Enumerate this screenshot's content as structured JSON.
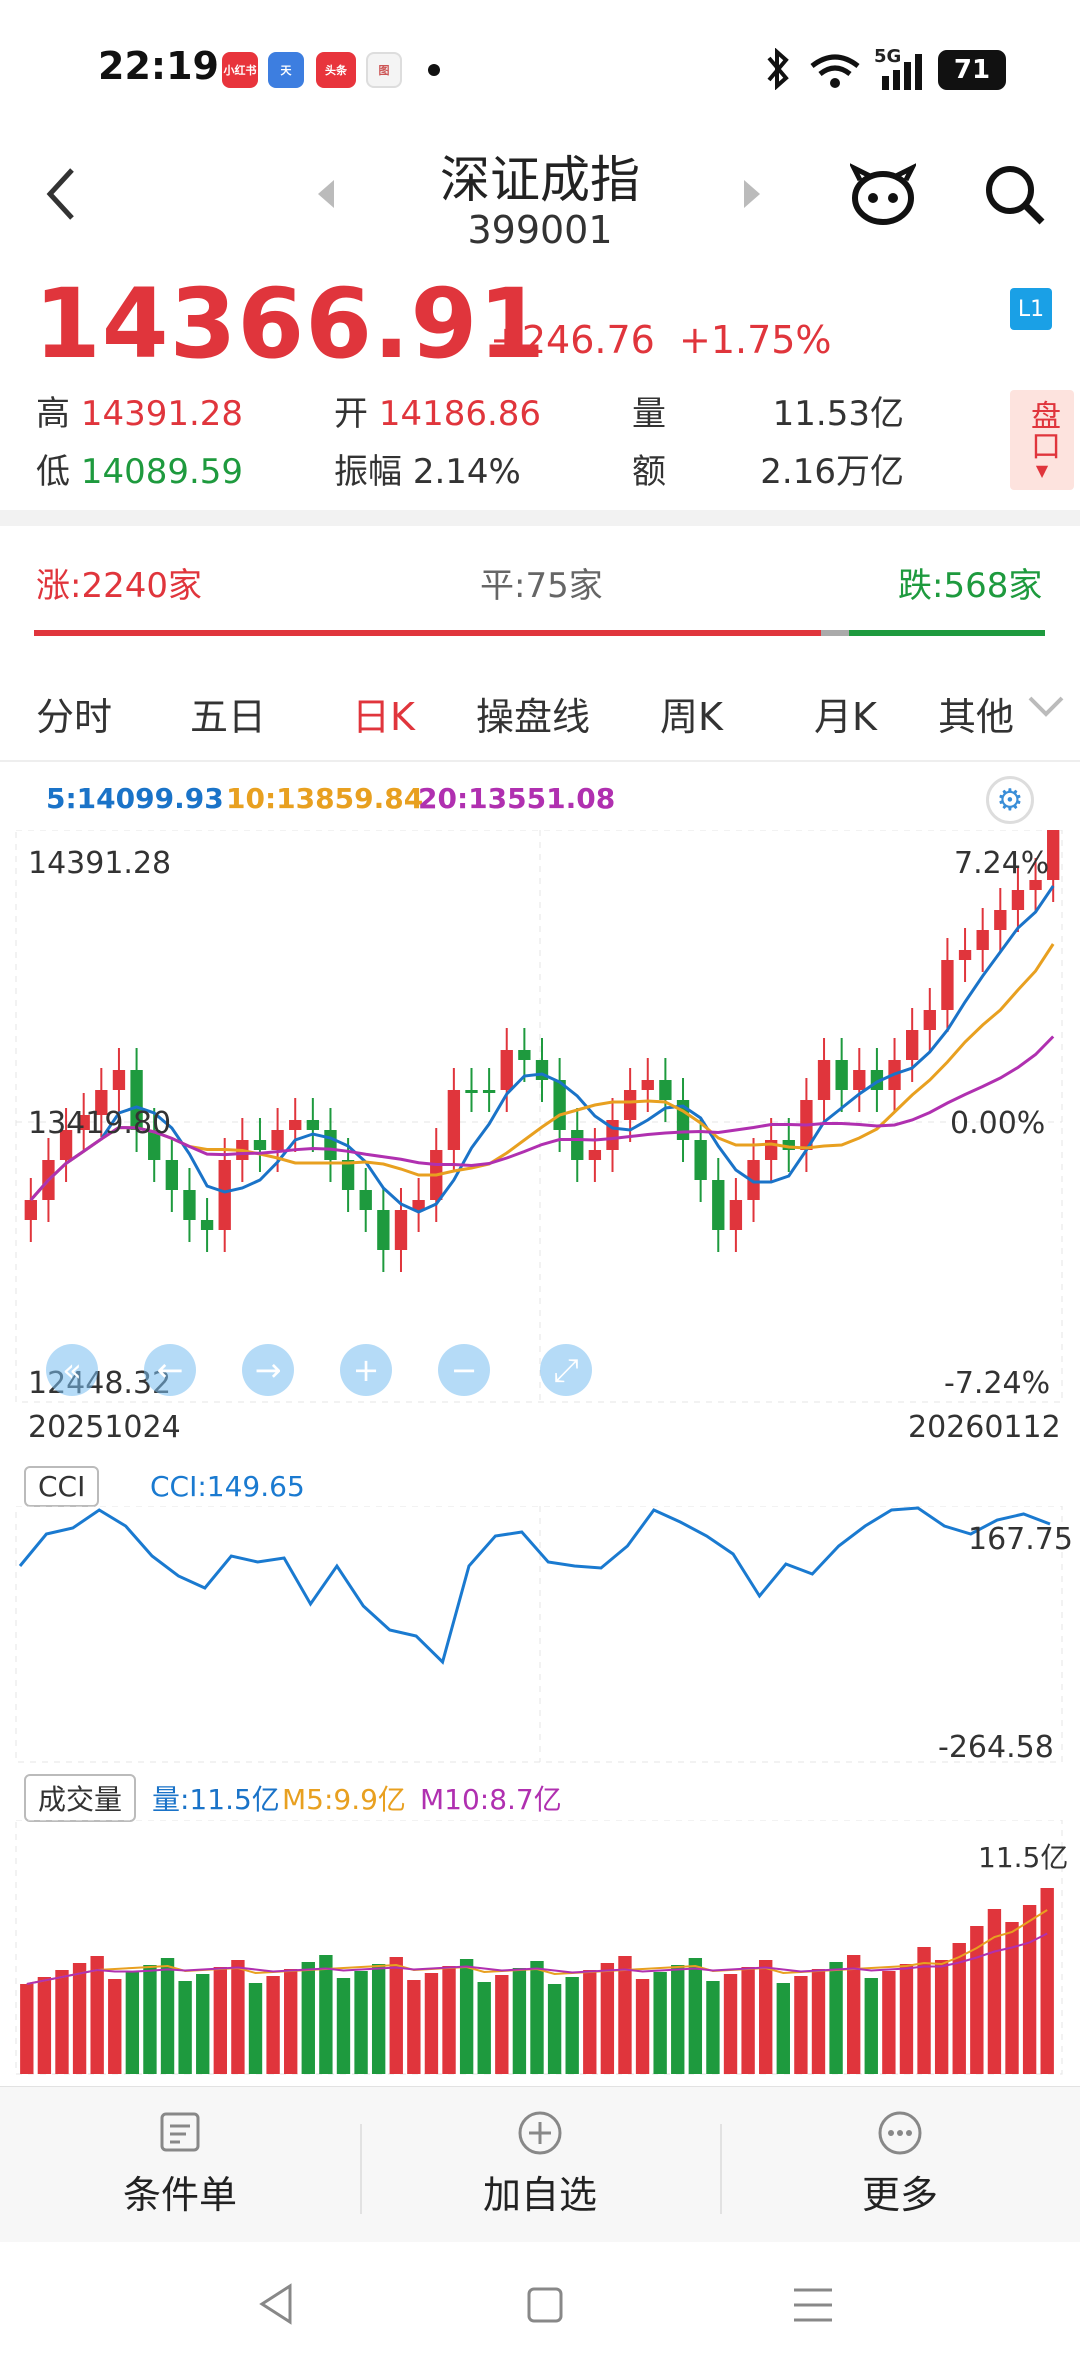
{
  "status": {
    "time": "22:19",
    "apps": [
      "小红书",
      "天",
      "头条",
      "图"
    ],
    "network": "5G",
    "battery": "71"
  },
  "header": {
    "back_icon": "chevron-left-icon",
    "name": "深证成指",
    "code": "399001",
    "robot_icon": "robot-icon",
    "search_icon": "search-icon"
  },
  "quote": {
    "price": "14366.91",
    "change": "+246.76",
    "change_pct": "+1.75%",
    "high_label": "高",
    "high": "14391.28",
    "open_label": "开",
    "open": "14186.86",
    "vol_label": "量",
    "vol": "11.53亿",
    "low_label": "低",
    "low": "14089.59",
    "amp_label": "振幅",
    "amp": "2.14%",
    "amt_label": "额",
    "amt": "2.16万亿",
    "level_badge": "L1",
    "pankou_label": "盘口"
  },
  "breadth": {
    "up": "涨:2240家",
    "flat": "平:75家",
    "down": "跌:568家"
  },
  "tabs": [
    "分时",
    "五日",
    "日K",
    "操盘线",
    "周K",
    "月K",
    "其他"
  ],
  "active_tab": "日K",
  "kline": {
    "ma5": "5:14099.93",
    "ma10": "10:13859.84",
    "ma20": "20:13551.08",
    "y_high": "14391.28",
    "y_mid": "13419.80",
    "y_low": "12448.32",
    "pct_high": "7.24%",
    "pct_mid": "0.00%",
    "pct_low": "-7.24%",
    "date_start": "20251024",
    "date_end": "20260112"
  },
  "cci": {
    "label": "CCI",
    "value": "CCI:149.65",
    "top": "167.75",
    "bottom": "-264.58"
  },
  "volume": {
    "label": "成交量",
    "vol": "量:11.5亿",
    "m5": "M5:9.9亿",
    "m10": "M10:8.7亿",
    "top": "11.5亿"
  },
  "actions": [
    {
      "label": "条件单",
      "icon": "order-icon"
    },
    {
      "label": "加自选",
      "icon": "add-circle-icon"
    },
    {
      "label": "更多",
      "icon": "more-icon"
    }
  ],
  "colors": {
    "up": "#e0353c",
    "down": "#1e9a3e",
    "ma5": "#1a73c8",
    "ma10": "#e8a020",
    "ma20": "#b030b0",
    "cci": "#1a7ad0"
  }
}
